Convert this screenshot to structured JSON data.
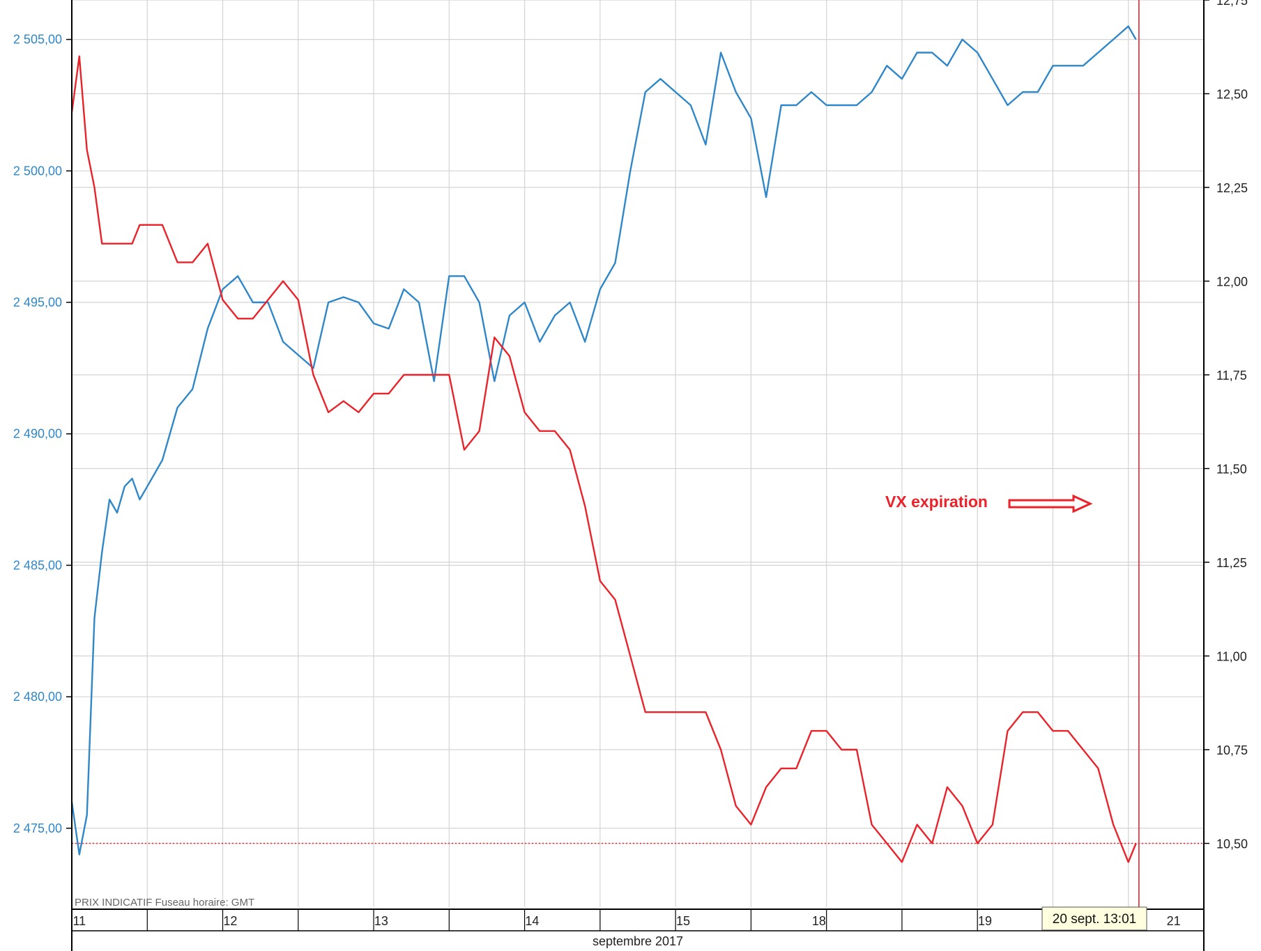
{
  "chart_data": {
    "type": "line",
    "footer_note": "PRIX INDICATIF   Fuseau horaire: GMT",
    "month_label": "septembre 2017",
    "cursor_label": "20 sept. 13:01",
    "annotation": "VX expiration",
    "colors": {
      "left_series": "#2f87c8",
      "right_series": "#e8232a",
      "grid": "#d4d4d4",
      "axis": "#000000"
    },
    "left_axis": {
      "range": [
        2472.0,
        2506.5
      ],
      "ticks": [
        2475,
        2480,
        2485,
        2490,
        2495,
        2500,
        2505
      ],
      "tick_labels": [
        "2 475,00",
        "2 480,00",
        "2 485,00",
        "2 490,00",
        "2 495,00",
        "2 500,00",
        "2 505,00"
      ]
    },
    "right_axis": {
      "range": [
        10.33,
        12.75
      ],
      "ticks": [
        10.5,
        10.75,
        11.0,
        11.25,
        11.5,
        11.75,
        12.0,
        12.25,
        12.5,
        12.75
      ],
      "tick_labels": [
        "10,50",
        "10,75",
        "11,00",
        "11,25",
        "11,50",
        "11,75",
        "12,00",
        "12,25",
        "12,50",
        "12,75"
      ],
      "reference_line": 10.5
    },
    "x_axis": {
      "range": [
        0,
        7.5
      ],
      "day_labels": [
        {
          "label": "11",
          "pos": 0.05
        },
        {
          "label": "12",
          "pos": 1.05
        },
        {
          "label": "13",
          "pos": 2.05
        },
        {
          "label": "14",
          "pos": 3.05
        },
        {
          "label": "15",
          "pos": 4.05
        },
        {
          "label": "18",
          "pos": 4.95
        },
        {
          "label": "19",
          "pos": 6.05
        },
        {
          "label": "21",
          "pos": 7.3
        }
      ],
      "cursor_pos": 7.07
    },
    "series": [
      {
        "axis": "left",
        "x": [
          0.0,
          0.05,
          0.1,
          0.15,
          0.2,
          0.25,
          0.3,
          0.35,
          0.4,
          0.45,
          0.5,
          0.6,
          0.7,
          0.8,
          0.9,
          1.0,
          1.1,
          1.2,
          1.3,
          1.4,
          1.5,
          1.6,
          1.7,
          1.8,
          1.9,
          2.0,
          2.1,
          2.2,
          2.3,
          2.4,
          2.5,
          2.6,
          2.7,
          2.8,
          2.9,
          3.0,
          3.1,
          3.2,
          3.3,
          3.4,
          3.5,
          3.6,
          3.7,
          3.8,
          3.9,
          4.0,
          4.1,
          4.2,
          4.3,
          4.4,
          4.5,
          4.6,
          4.7,
          4.8,
          4.9,
          5.0,
          5.1,
          5.2,
          5.3,
          5.4,
          5.5,
          5.6,
          5.7,
          5.8,
          5.9,
          6.0,
          6.1,
          6.2,
          6.3,
          6.4,
          6.5,
          6.6,
          6.7,
          6.8,
          6.9,
          7.0,
          7.05
        ],
        "y": [
          2476.0,
          2474.0,
          2475.5,
          2483.0,
          2485.5,
          2487.5,
          2487.0,
          2488.0,
          2488.3,
          2487.5,
          2488.0,
          2489.0,
          2491.0,
          2491.7,
          2494.0,
          2495.5,
          2496.0,
          2495.0,
          2495.0,
          2493.5,
          2493.0,
          2492.5,
          2495.0,
          2495.2,
          2495.0,
          2494.2,
          2494.0,
          2495.5,
          2495.0,
          2492.0,
          2496.0,
          2496.0,
          2495.0,
          2492.0,
          2494.5,
          2495.0,
          2493.5,
          2494.5,
          2495.0,
          2493.5,
          2495.5,
          2496.5,
          2500.0,
          2503.0,
          2503.5,
          2503.0,
          2502.5,
          2501.0,
          2504.5,
          2503.0,
          2502.0,
          2499.0,
          2502.5,
          2502.5,
          2503.0,
          2502.5,
          2502.5,
          2502.5,
          2503.0,
          2504.0,
          2503.5,
          2504.5,
          2504.5,
          2504.0,
          2505.0,
          2504.5,
          2503.5,
          2502.5,
          2503.0,
          2503.0,
          2504.0,
          2504.0,
          2504.0,
          2504.5,
          2505.0,
          2505.5,
          2505.0
        ]
      },
      {
        "axis": "right",
        "x": [
          0.0,
          0.05,
          0.1,
          0.15,
          0.2,
          0.25,
          0.3,
          0.35,
          0.4,
          0.45,
          0.5,
          0.6,
          0.7,
          0.8,
          0.9,
          1.0,
          1.1,
          1.2,
          1.3,
          1.4,
          1.5,
          1.6,
          1.7,
          1.8,
          1.9,
          2.0,
          2.1,
          2.2,
          2.3,
          2.4,
          2.5,
          2.6,
          2.7,
          2.8,
          2.9,
          3.0,
          3.1,
          3.2,
          3.3,
          3.4,
          3.5,
          3.6,
          3.7,
          3.8,
          3.9,
          4.0,
          4.1,
          4.2,
          4.3,
          4.4,
          4.5,
          4.6,
          4.7,
          4.8,
          4.9,
          5.0,
          5.1,
          5.2,
          5.3,
          5.4,
          5.5,
          5.6,
          5.7,
          5.8,
          5.9,
          6.0,
          6.1,
          6.2,
          6.3,
          6.4,
          6.5,
          6.6,
          6.7,
          6.8,
          6.9,
          7.0,
          7.05
        ],
        "y": [
          12.45,
          12.6,
          12.35,
          12.25,
          12.1,
          12.1,
          12.1,
          12.1,
          12.1,
          12.15,
          12.15,
          12.15,
          12.05,
          12.05,
          12.1,
          11.95,
          11.9,
          11.9,
          11.95,
          12.0,
          11.95,
          11.75,
          11.65,
          11.68,
          11.65,
          11.7,
          11.7,
          11.75,
          11.75,
          11.75,
          11.75,
          11.55,
          11.6,
          11.85,
          11.8,
          11.65,
          11.6,
          11.6,
          11.55,
          11.4,
          11.2,
          11.15,
          11.0,
          10.85,
          10.85,
          10.85,
          10.85,
          10.85,
          10.75,
          10.6,
          10.55,
          10.65,
          10.7,
          10.7,
          10.8,
          10.8,
          10.75,
          10.75,
          10.55,
          10.5,
          10.45,
          10.55,
          10.5,
          10.65,
          10.6,
          10.5,
          10.55,
          10.8,
          10.85,
          10.85,
          10.8,
          10.8,
          10.75,
          10.7,
          10.55,
          10.45,
          10.5
        ]
      }
    ]
  }
}
